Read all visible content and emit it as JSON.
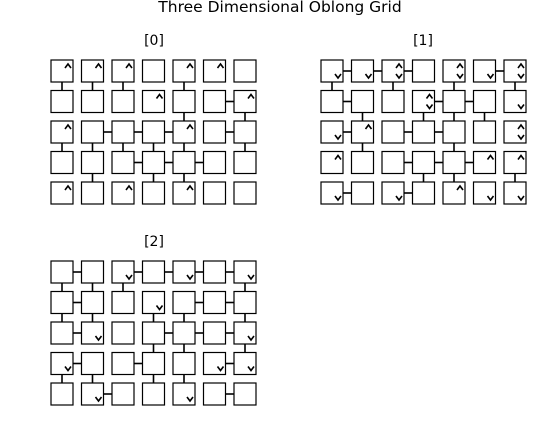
{
  "title": "Three Dimensional Oblong Grid",
  "grid": {
    "rows": 5,
    "cols": 7,
    "cell_legend": {
      "up": "caret up mark in cell",
      "down": "caret down mark in cell",
      "h": "horizontal link to right-hand neighbour",
      "v": "vertical link to cell below"
    }
  },
  "layers": [
    {
      "label": "[0]",
      "up": [
        [
          0,
          0
        ],
        [
          0,
          1
        ],
        [
          0,
          2
        ],
        [
          0,
          4
        ],
        [
          0,
          5
        ],
        [
          1,
          3
        ],
        [
          1,
          6
        ],
        [
          2,
          0
        ],
        [
          2,
          4
        ],
        [
          4,
          0
        ],
        [
          4,
          2
        ],
        [
          4,
          4
        ]
      ],
      "down": [],
      "h": [
        [
          1,
          5
        ],
        [
          2,
          1
        ],
        [
          2,
          2
        ],
        [
          2,
          3
        ],
        [
          2,
          5
        ],
        [
          3,
          2
        ],
        [
          3,
          3
        ],
        [
          3,
          4
        ]
      ],
      "v": [
        [
          0,
          0
        ],
        [
          0,
          1
        ],
        [
          0,
          2
        ],
        [
          0,
          4
        ],
        [
          1,
          4
        ],
        [
          1,
          6
        ],
        [
          2,
          0
        ],
        [
          2,
          1
        ],
        [
          2,
          2
        ],
        [
          2,
          3
        ],
        [
          2,
          4
        ],
        [
          2,
          6
        ],
        [
          3,
          1
        ],
        [
          3,
          3
        ],
        [
          3,
          4
        ]
      ]
    },
    {
      "label": "[1]",
      "up": [
        [
          0,
          2
        ],
        [
          0,
          4
        ],
        [
          0,
          6
        ],
        [
          1,
          3
        ],
        [
          2,
          1
        ],
        [
          2,
          6
        ],
        [
          3,
          0
        ],
        [
          3,
          5
        ],
        [
          3,
          6
        ],
        [
          4,
          4
        ]
      ],
      "down": [
        [
          0,
          0
        ],
        [
          0,
          1
        ],
        [
          0,
          2
        ],
        [
          0,
          4
        ],
        [
          0,
          5
        ],
        [
          0,
          6
        ],
        [
          1,
          3
        ],
        [
          1,
          6
        ],
        [
          2,
          0
        ],
        [
          2,
          6
        ],
        [
          4,
          0
        ],
        [
          4,
          2
        ],
        [
          4,
          5
        ],
        [
          4,
          6
        ]
      ],
      "h": [
        [
          0,
          0
        ],
        [
          0,
          1
        ],
        [
          0,
          2
        ],
        [
          0,
          5
        ],
        [
          1,
          0
        ],
        [
          1,
          3
        ],
        [
          1,
          4
        ],
        [
          2,
          0
        ],
        [
          2,
          2
        ],
        [
          2,
          3
        ],
        [
          3,
          2
        ],
        [
          3,
          3
        ],
        [
          3,
          4
        ],
        [
          4,
          0
        ],
        [
          4,
          2
        ]
      ],
      "v": [
        [
          0,
          0
        ],
        [
          0,
          2
        ],
        [
          0,
          4
        ],
        [
          0,
          6
        ],
        [
          1,
          1
        ],
        [
          1,
          3
        ],
        [
          1,
          4
        ],
        [
          1,
          5
        ],
        [
          2,
          1
        ],
        [
          2,
          4
        ],
        [
          3,
          3
        ],
        [
          3,
          4
        ],
        [
          3,
          6
        ]
      ]
    },
    {
      "label": "[2]",
      "up": [],
      "down": [
        [
          0,
          2
        ],
        [
          0,
          4
        ],
        [
          0,
          6
        ],
        [
          1,
          3
        ],
        [
          2,
          1
        ],
        [
          2,
          6
        ],
        [
          3,
          0
        ],
        [
          3,
          5
        ],
        [
          3,
          6
        ],
        [
          4,
          1
        ],
        [
          4,
          4
        ]
      ],
      "h": [
        [
          0,
          0
        ],
        [
          0,
          2
        ],
        [
          0,
          3
        ],
        [
          0,
          4
        ],
        [
          0,
          5
        ],
        [
          1,
          0
        ],
        [
          1,
          4
        ],
        [
          1,
          5
        ],
        [
          2,
          0
        ],
        [
          2,
          3
        ],
        [
          2,
          4
        ],
        [
          2,
          5
        ],
        [
          3,
          0
        ],
        [
          3,
          2
        ],
        [
          3,
          5
        ],
        [
          4,
          1
        ],
        [
          4,
          5
        ]
      ],
      "v": [
        [
          0,
          0
        ],
        [
          0,
          1
        ],
        [
          0,
          2
        ],
        [
          0,
          6
        ],
        [
          1,
          0
        ],
        [
          1,
          1
        ],
        [
          1,
          3
        ],
        [
          1,
          4
        ],
        [
          1,
          6
        ],
        [
          2,
          3
        ],
        [
          2,
          4
        ],
        [
          2,
          6
        ],
        [
          3,
          0
        ],
        [
          3,
          1
        ],
        [
          3,
          3
        ],
        [
          3,
          4
        ]
      ]
    }
  ]
}
